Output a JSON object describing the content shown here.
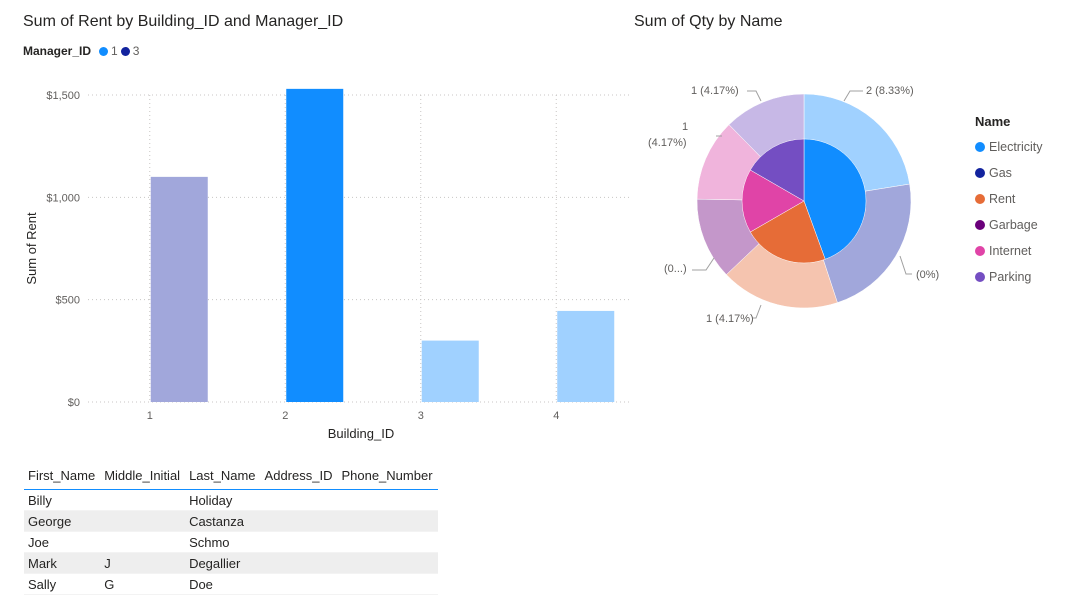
{
  "bar_visual": {
    "title": "Sum of Rent by Building_ID and Manager_ID",
    "legend_title": "Manager_ID",
    "legend": [
      {
        "label": "1",
        "color": "#118dff"
      },
      {
        "label": "3",
        "color": "#12239e"
      }
    ]
  },
  "pie_visual": {
    "title": "Sum of Qty by Name",
    "legend_title": "Name",
    "legend": [
      {
        "label": "Electricity",
        "color": "#118dff"
      },
      {
        "label": "Gas",
        "color": "#12239e"
      },
      {
        "label": "Rent",
        "color": "#e66c37"
      },
      {
        "label": "Garbage",
        "color": "#6b007b"
      },
      {
        "label": "Internet",
        "color": "#e044a7"
      },
      {
        "label": "Parking",
        "color": "#744ec2"
      }
    ]
  },
  "chart_data": [
    {
      "type": "bar",
      "title": "Sum of Rent by Building_ID and Manager_ID",
      "xlabel": "Building_ID",
      "ylabel": "Sum of Rent",
      "categories": [
        "1",
        "2",
        "3",
        "4"
      ],
      "values": [
        1100,
        1530,
        300,
        445
      ],
      "bar_colors": [
        "#a1a7db",
        "#118dff",
        "#a0d1ff",
        "#a0d1ff"
      ],
      "ylim": [
        0,
        1500
      ],
      "yticks": [
        0,
        500,
        1000,
        1500
      ],
      "ytick_labels": [
        "$0",
        "$500",
        "$1,000",
        "$1,500"
      ],
      "grid": true,
      "legend_placement": "top-left"
    },
    {
      "type": "pie",
      "title": "Sum of Qty by Name",
      "inner_slices": [
        {
          "color": "#118dff",
          "value": 4
        },
        {
          "color": "#e66c37",
          "value": 2
        },
        {
          "color": "#e044a7",
          "value": 1.5
        },
        {
          "color": "#744ec2",
          "value": 1.5
        }
      ],
      "outer_slices": [
        {
          "color": "#a0d1ff",
          "value": 2
        },
        {
          "color": "#a1a7db",
          "value": 2
        },
        {
          "color": "#f5c4af",
          "value": 1.6
        },
        {
          "color": "#c497ca",
          "value": 1.1
        },
        {
          "color": "#f0b4dc",
          "value": 1.1
        },
        {
          "color": "#c7b8e6",
          "value": 1.1
        }
      ],
      "data_labels": [
        "2 (8.33%)",
        "(0%)",
        "1 (4.17%)",
        "(0...)",
        "1",
        "(4.17%)",
        "1 (4.17%)"
      ],
      "legend_placement": "right"
    }
  ],
  "table": {
    "columns": [
      "First_Name",
      "Middle_Initial",
      "Last_Name",
      "Address_ID",
      "Phone_Number"
    ],
    "rows": [
      [
        "Billy",
        "",
        "Holiday",
        "",
        ""
      ],
      [
        "George",
        "",
        "Castanza",
        "",
        ""
      ],
      [
        "Joe",
        "",
        "Schmo",
        "",
        ""
      ],
      [
        "Mark",
        "J",
        "Degallier",
        "",
        ""
      ],
      [
        "Sally",
        "G",
        "Doe",
        "",
        ""
      ]
    ]
  }
}
